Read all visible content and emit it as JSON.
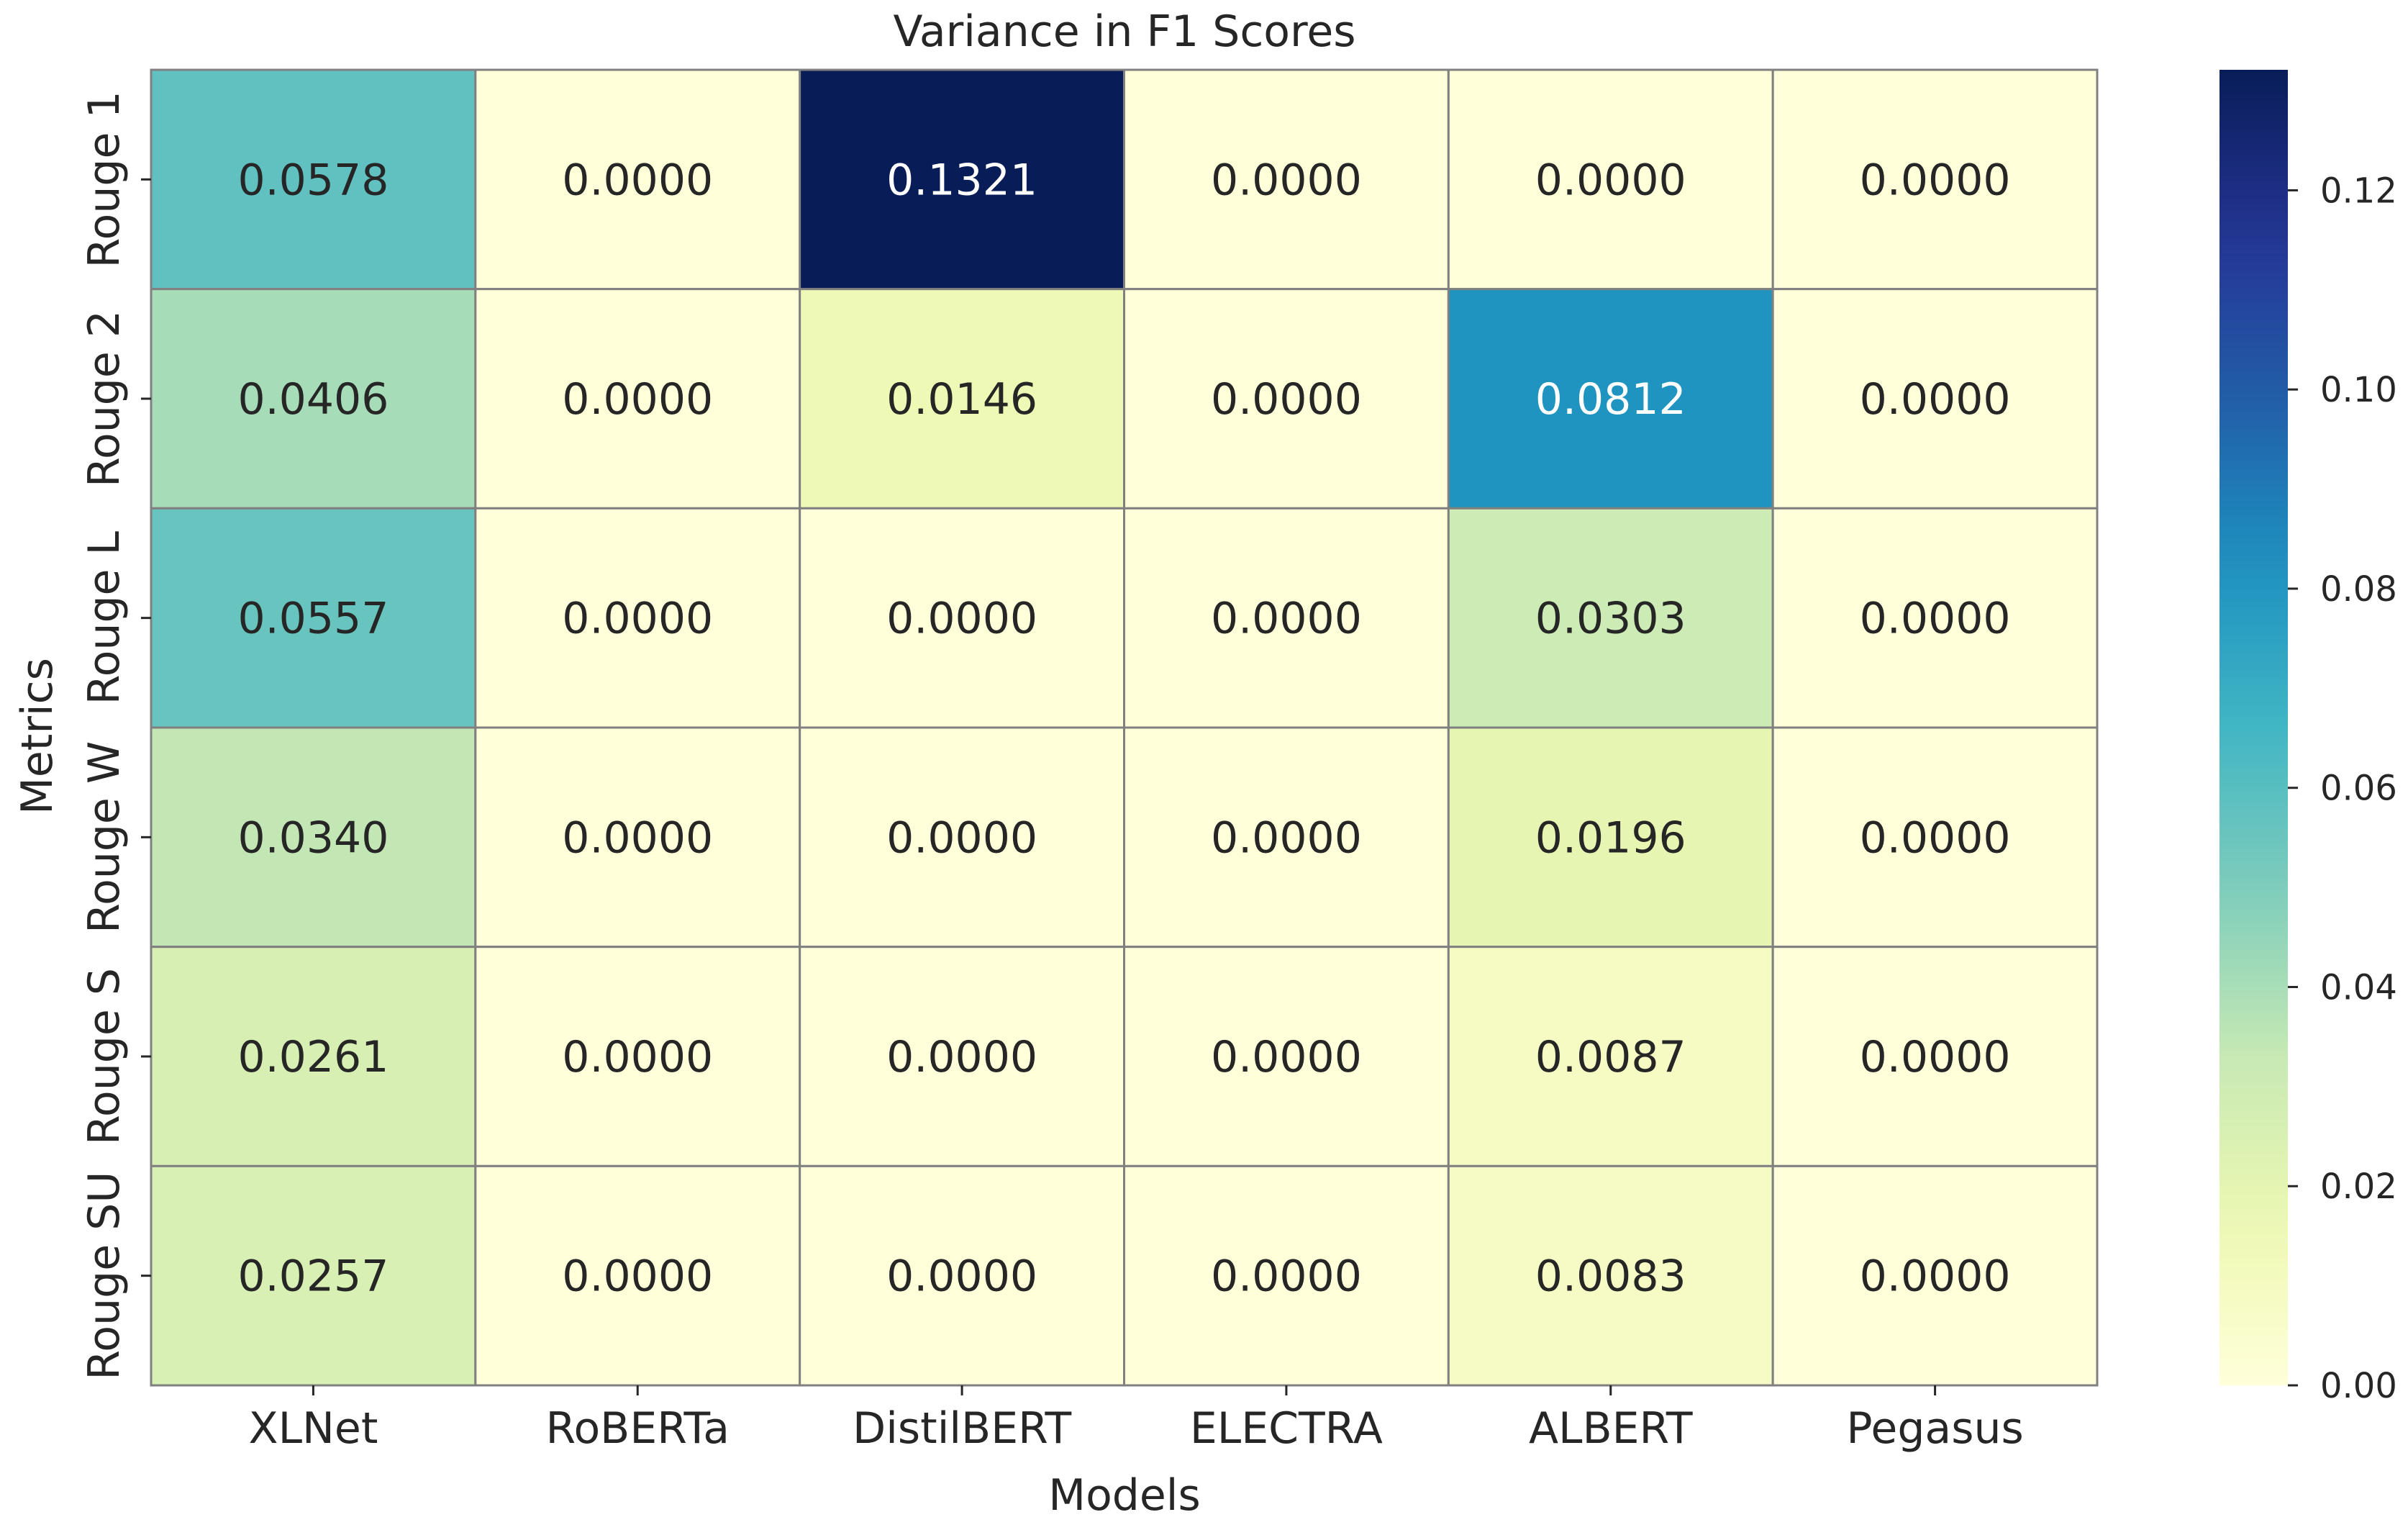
{
  "chart_data": {
    "type": "heatmap",
    "title": "Variance in F1 Scores",
    "xlabel": "Models",
    "ylabel": "Metrics",
    "x_categories": [
      "XLNet",
      "RoBERTa",
      "DistilBERT",
      "ELECTRA",
      "ALBERT",
      "Pegasus"
    ],
    "y_categories": [
      "Rouge 1",
      "Rouge 2",
      "Rouge L",
      "Rouge W",
      "Rouge S",
      "Rouge SU"
    ],
    "values": [
      [
        0.0578,
        0.0,
        0.1321,
        0.0,
        0.0,
        0.0
      ],
      [
        0.0406,
        0.0,
        0.0146,
        0.0,
        0.0812,
        0.0
      ],
      [
        0.0557,
        0.0,
        0.0,
        0.0,
        0.0303,
        0.0
      ],
      [
        0.034,
        0.0,
        0.0,
        0.0,
        0.0196,
        0.0
      ],
      [
        0.0261,
        0.0,
        0.0,
        0.0,
        0.0087,
        0.0
      ],
      [
        0.0257,
        0.0,
        0.0,
        0.0,
        0.0083,
        0.0
      ]
    ],
    "cell_labels": [
      [
        "0.0578",
        "0.0000",
        "0.1321",
        "0.0000",
        "0.0000",
        "0.0000"
      ],
      [
        "0.0406",
        "0.0000",
        "0.0146",
        "0.0000",
        "0.0812",
        "0.0000"
      ],
      [
        "0.0557",
        "0.0000",
        "0.0000",
        "0.0000",
        "0.0303",
        "0.0000"
      ],
      [
        "0.0340",
        "0.0000",
        "0.0000",
        "0.0000",
        "0.0196",
        "0.0000"
      ],
      [
        "0.0261",
        "0.0000",
        "0.0000",
        "0.0000",
        "0.0087",
        "0.0000"
      ],
      [
        "0.0257",
        "0.0000",
        "0.0000",
        "0.0000",
        "0.0083",
        "0.0000"
      ]
    ],
    "colormap": "YlGnBu",
    "color_range": [
      0.0,
      0.1321
    ],
    "colorbar_ticks": [
      0.0,
      0.02,
      0.04,
      0.06,
      0.08,
      0.1,
      0.12
    ],
    "colorbar_tick_labels": [
      "0.00",
      "0.02",
      "0.04",
      "0.06",
      "0.08",
      "0.10",
      "0.12"
    ],
    "cell_border_color": "#808080",
    "dark_text_color": "#262626",
    "light_text_color": "#ffffff"
  }
}
